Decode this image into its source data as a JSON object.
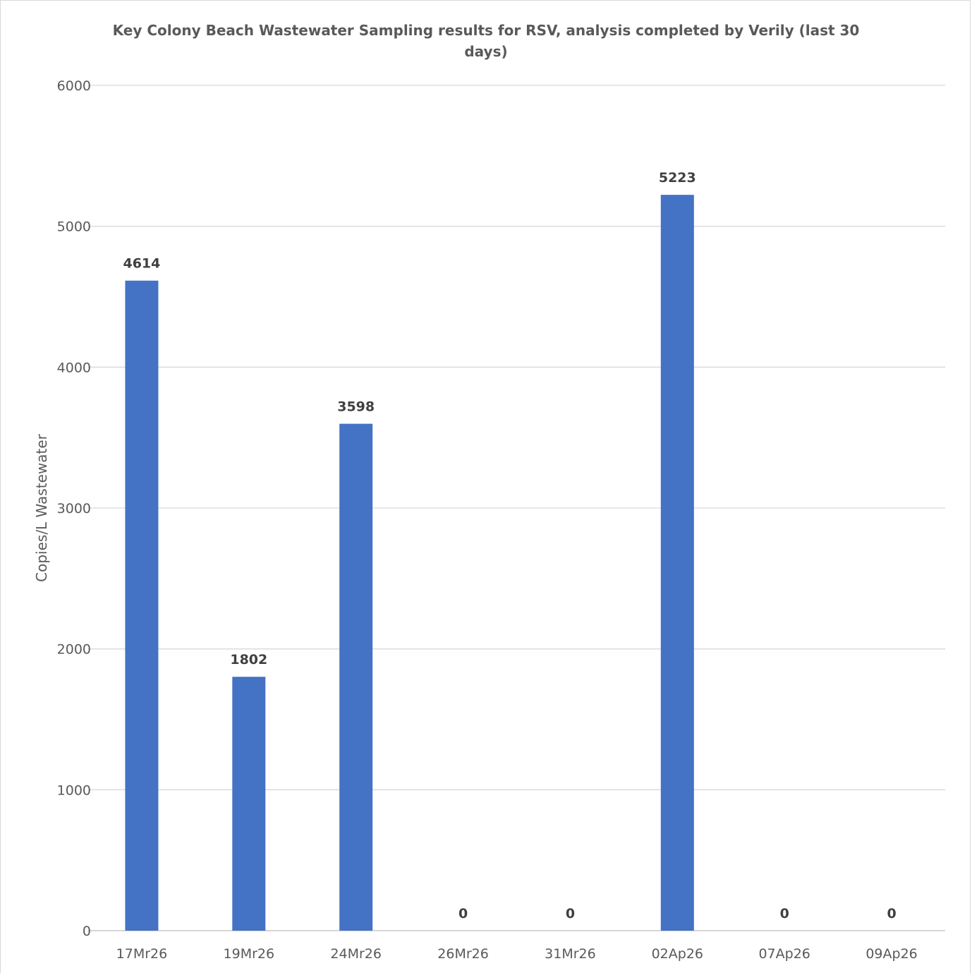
{
  "chart_data": {
    "type": "bar",
    "title": "Key Colony Beach Wastewater Sampling results for RSV, analysis completed by Verily (last 30 days)",
    "xlabel": "",
    "ylabel": "Copies/L Wastewater",
    "categories": [
      "17Mr26",
      "19Mr26",
      "24Mr26",
      "26Mr26",
      "31Mr26",
      "02Ap26",
      "07Ap26",
      "09Ap26"
    ],
    "values": [
      4614,
      1802,
      3598,
      0,
      0,
      5223,
      0,
      0
    ],
    "data_labels": [
      "4614",
      "1802",
      "3598",
      "0",
      "0",
      "5223",
      "0",
      "0"
    ],
    "ylim": [
      0,
      6000
    ],
    "yticks": [
      "0",
      "1000",
      "2000",
      "3000",
      "4000",
      "5000",
      "6000"
    ],
    "grid": true,
    "legend": "none",
    "bar_color": "#4472c4"
  }
}
